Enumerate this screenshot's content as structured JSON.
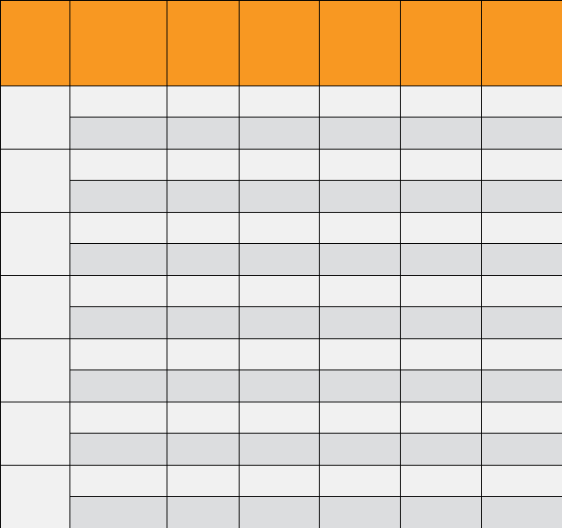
{
  "table": {
    "header_color": "#F89822",
    "group_label_color": "#F1F1F1",
    "row_odd_color": "#F1F1F1",
    "row_even_color": "#DCDDDF",
    "border_color": "#000000",
    "headers": [
      "",
      "",
      "",
      "",
      "",
      "",
      ""
    ],
    "groups": [
      {
        "label": "",
        "rows": [
          [
            "",
            "",
            "",
            "",
            "",
            ""
          ],
          [
            "",
            "",
            "",
            "",
            "",
            ""
          ]
        ]
      },
      {
        "label": "",
        "rows": [
          [
            "",
            "",
            "",
            "",
            "",
            ""
          ],
          [
            "",
            "",
            "",
            "",
            "",
            ""
          ]
        ]
      },
      {
        "label": "",
        "rows": [
          [
            "",
            "",
            "",
            "",
            "",
            ""
          ],
          [
            "",
            "",
            "",
            "",
            "",
            ""
          ]
        ]
      },
      {
        "label": "",
        "rows": [
          [
            "",
            "",
            "",
            "",
            "",
            ""
          ],
          [
            "",
            "",
            "",
            "",
            "",
            ""
          ]
        ]
      },
      {
        "label": "",
        "rows": [
          [
            "",
            "",
            "",
            "",
            "",
            ""
          ],
          [
            "",
            "",
            "",
            "",
            "",
            ""
          ]
        ]
      },
      {
        "label": "",
        "rows": [
          [
            "",
            "",
            "",
            "",
            "",
            ""
          ],
          [
            "",
            "",
            "",
            "",
            "",
            ""
          ]
        ]
      },
      {
        "label": "",
        "rows": [
          [
            "",
            "",
            "",
            "",
            "",
            ""
          ],
          [
            "",
            "",
            "",
            "",
            "",
            ""
          ]
        ]
      }
    ]
  }
}
